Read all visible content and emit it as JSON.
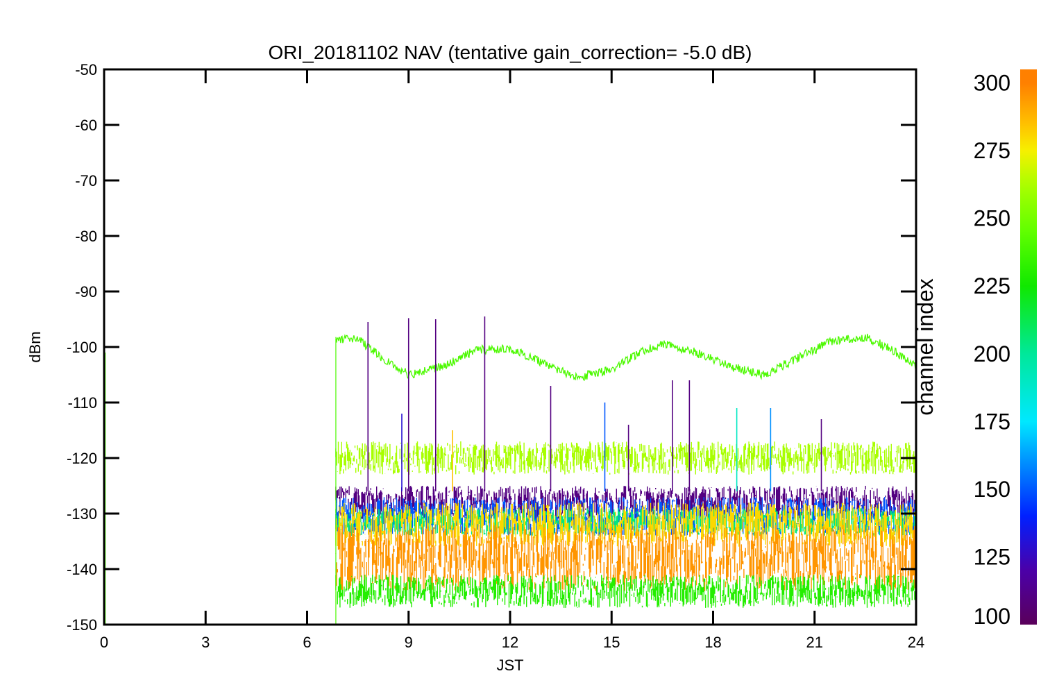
{
  "chart_data": {
    "type": "line",
    "title": "ORI_20181102 NAV (tentative gain_correction= -5.0 dB)",
    "xlabel": "JST",
    "ylabel": "dBm",
    "xlim": [
      0,
      24
    ],
    "ylim": [
      -150,
      -50
    ],
    "x_ticks": [
      "0",
      "3",
      "6",
      "9",
      "12",
      "15",
      "18",
      "21",
      "24"
    ],
    "y_ticks": [
      "-50",
      "-60",
      "-70",
      "-80",
      "-90",
      "-100",
      "-110",
      "-120",
      "-130",
      "-140",
      "-150"
    ],
    "data_start_hour": 6.85,
    "series": [
      {
        "channel": 240,
        "mean_x": [
          6.85,
          7.5,
          8.0,
          9.0,
          10.0,
          11.0,
          12.0,
          13.0,
          14.0,
          15.0,
          16.0,
          16.6,
          17.5,
          18.5,
          19.5,
          20.5,
          21.5,
          22.5,
          23.3,
          24.0
        ],
        "mean_y": [
          -98.5,
          -98.5,
          -101.0,
          -105.0,
          -103.5,
          -100.5,
          -100.3,
          -103.0,
          -105.5,
          -104.0,
          -100.5,
          -99.4,
          -101.0,
          -103.5,
          -105.0,
          -102.0,
          -99.0,
          -98.2,
          -100.5,
          -103.5
        ],
        "noise": 0.8
      },
      {
        "channel": 262,
        "band": [
          -123,
          -117
        ]
      },
      {
        "channel": 110,
        "band": [
          -131,
          -125
        ]
      },
      {
        "channel": 150,
        "band": [
          -134,
          -127
        ]
      },
      {
        "channel": 205,
        "band": [
          -134,
          -129
        ]
      },
      {
        "channel": 280,
        "band": [
          -136,
          -128
        ]
      },
      {
        "channel": 295,
        "band": [
          -144,
          -132
        ]
      },
      {
        "channel": 230,
        "band": [
          -147,
          -141
        ]
      }
    ],
    "spikes": [
      {
        "x": 7.8,
        "y": -95.5,
        "channel": 110
      },
      {
        "x": 9.0,
        "y": -94.8,
        "channel": 110
      },
      {
        "x": 9.8,
        "y": -95.0,
        "channel": 110
      },
      {
        "x": 11.25,
        "y": -94.5,
        "channel": 110
      },
      {
        "x": 13.2,
        "y": -107.0,
        "channel": 110
      },
      {
        "x": 14.8,
        "y": -110.0,
        "channel": 150
      },
      {
        "x": 16.8,
        "y": -106.0,
        "channel": 110
      },
      {
        "x": 17.3,
        "y": -106.0,
        "channel": 110
      },
      {
        "x": 8.8,
        "y": -112.0,
        "channel": 130
      },
      {
        "x": 19.7,
        "y": -111.0,
        "channel": 160
      },
      {
        "x": 18.7,
        "y": -111.0,
        "channel": 190
      },
      {
        "x": 10.3,
        "y": -115.0,
        "channel": 285
      },
      {
        "x": 21.2,
        "y": -113.0,
        "channel": 110
      },
      {
        "x": 15.5,
        "y": -114.0,
        "channel": 110
      }
    ],
    "colorbar": {
      "label": "channel index",
      "range": [
        100,
        305
      ],
      "ticks": [
        "300",
        "275",
        "250",
        "225",
        "200",
        "175",
        "150",
        "125",
        "100"
      ],
      "colors": {
        "100": "#5a005a",
        "120": "#4b00a8",
        "140": "#0020ff",
        "160": "#0090ff",
        "175": "#00e8ff",
        "200": "#00e89a",
        "225": "#10e800",
        "245": "#60ff00",
        "262": "#a8ff00",
        "275": "#f6f000",
        "285": "#ffc000",
        "300": "#ff8000"
      }
    }
  }
}
